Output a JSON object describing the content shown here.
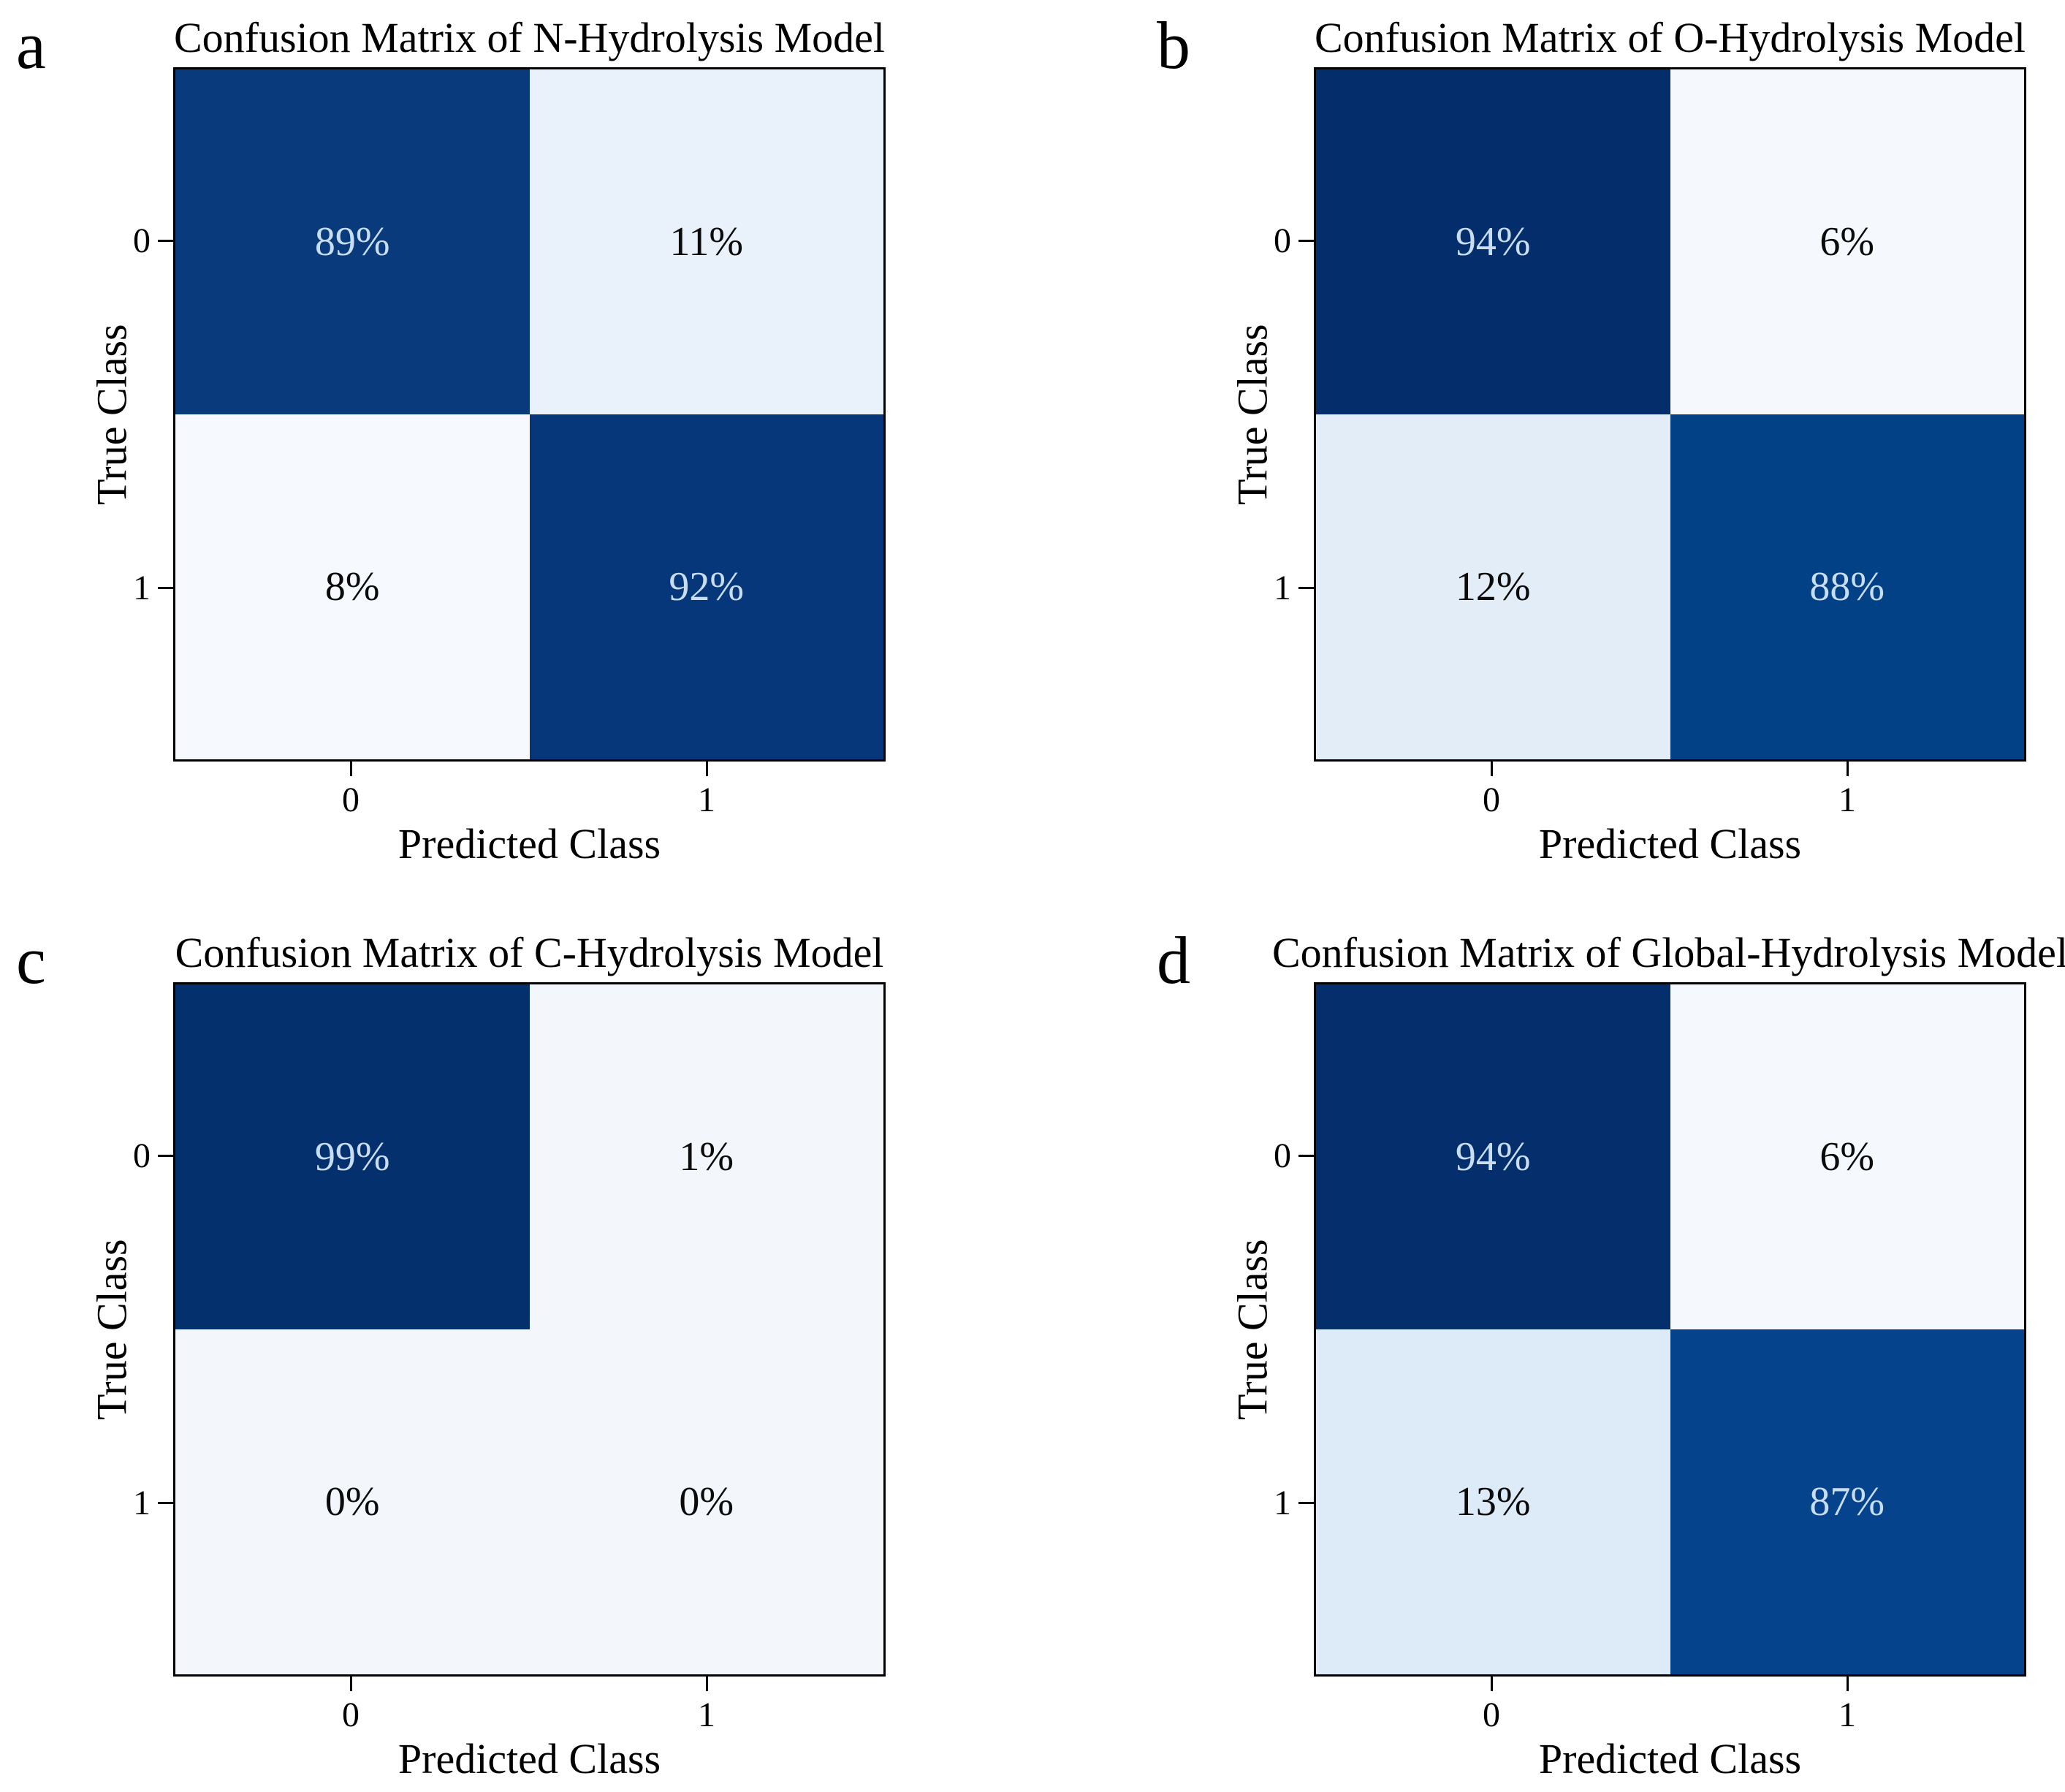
{
  "figure": {
    "background_color": "#ffffff",
    "axis_color": "#000000",
    "dark_cell_text_color": "#c9ddf0",
    "light_cell_text_color": "#0b0b0b",
    "colormap": "Blues"
  },
  "panels": [
    {
      "letter": "a",
      "title": "Confusion Matrix of N-Hydrolysis Model",
      "xlabel": "Predicted Class",
      "ylabel": "True Class",
      "xticks": [
        "0",
        "1"
      ],
      "yticks": [
        "0",
        "1"
      ],
      "cells": [
        [
          {
            "label": "89%",
            "bg": "#083a7c",
            "fg": "#c9ddf0"
          },
          {
            "label": "11%",
            "bg": "#e9f1fb",
            "fg": "#0b0b0b"
          }
        ],
        [
          {
            "label": "8%",
            "bg": "#f6f9fd",
            "fg": "#0b0b0b"
          },
          {
            "label": "92%",
            "bg": "#05377a",
            "fg": "#c9ddf0"
          }
        ]
      ]
    },
    {
      "letter": "b",
      "title": "Confusion Matrix of O-Hydrolysis Model",
      "xlabel": "Predicted Class",
      "ylabel": "True Class",
      "xticks": [
        "0",
        "1"
      ],
      "yticks": [
        "0",
        "1"
      ],
      "cells": [
        [
          {
            "label": "94%",
            "bg": "#042e6b",
            "fg": "#c9ddf0"
          },
          {
            "label": "6%",
            "bg": "#f5f8fd",
            "fg": "#0b0b0b"
          }
        ],
        [
          {
            "label": "12%",
            "bg": "#e2edf8",
            "fg": "#0b0b0b"
          },
          {
            "label": "88%",
            "bg": "#034186",
            "fg": "#c9ddf0"
          }
        ]
      ]
    },
    {
      "letter": "c",
      "title": "Confusion Matrix of C-Hydrolysis Model",
      "xlabel": "Predicted Class",
      "ylabel": "True Class",
      "xticks": [
        "0",
        "1"
      ],
      "yticks": [
        "0",
        "1"
      ],
      "cells": [
        [
          {
            "label": "99%",
            "bg": "#04306e",
            "fg": "#c9ddf0"
          },
          {
            "label": "1%",
            "bg": "#f3f7fc",
            "fg": "#0b0b0b"
          }
        ],
        [
          {
            "label": "0%",
            "bg": "#f3f7fc",
            "fg": "#0b0b0b"
          },
          {
            "label": "0%",
            "bg": "#f3f7fc",
            "fg": "#0b0b0b"
          }
        ]
      ]
    },
    {
      "letter": "d",
      "title": "Confusion Matrix of Global-Hydrolysis Model",
      "xlabel": "Predicted Class",
      "ylabel": "True Class",
      "xticks": [
        "0",
        "1"
      ],
      "yticks": [
        "0",
        "1"
      ],
      "cells": [
        [
          {
            "label": "94%",
            "bg": "#052f6c",
            "fg": "#c9ddf0"
          },
          {
            "label": "6%",
            "bg": "#f5f8fd",
            "fg": "#0b0b0b"
          }
        ],
        [
          {
            "label": "13%",
            "bg": "#ddeaf7",
            "fg": "#0b0b0b"
          },
          {
            "label": "87%",
            "bg": "#05438c",
            "fg": "#c9ddf0"
          }
        ]
      ]
    }
  ],
  "chart_data": [
    {
      "type": "heatmap",
      "title": "Confusion Matrix of N-Hydrolysis Model",
      "xlabel": "Predicted Class",
      "ylabel": "True Class",
      "x_categories": [
        "0",
        "1"
      ],
      "y_categories": [
        "0",
        "1"
      ],
      "values_percent": [
        [
          89,
          11
        ],
        [
          8,
          92
        ]
      ],
      "cell_labels": [
        [
          "89%",
          "11%"
        ],
        [
          "8%",
          "92%"
        ]
      ],
      "colormap": "Blues",
      "legend": "none",
      "grid": false
    },
    {
      "type": "heatmap",
      "title": "Confusion Matrix of O-Hydrolysis Model",
      "xlabel": "Predicted Class",
      "ylabel": "True Class",
      "x_categories": [
        "0",
        "1"
      ],
      "y_categories": [
        "0",
        "1"
      ],
      "values_percent": [
        [
          94,
          6
        ],
        [
          12,
          88
        ]
      ],
      "cell_labels": [
        [
          "94%",
          "6%"
        ],
        [
          "12%",
          "88%"
        ]
      ],
      "colormap": "Blues",
      "legend": "none",
      "grid": false
    },
    {
      "type": "heatmap",
      "title": "Confusion Matrix of C-Hydrolysis Model",
      "xlabel": "Predicted Class",
      "ylabel": "True Class",
      "x_categories": [
        "0",
        "1"
      ],
      "y_categories": [
        "0",
        "1"
      ],
      "values_percent": [
        [
          99,
          1
        ],
        [
          0,
          0
        ]
      ],
      "cell_labels": [
        [
          "99%",
          "1%"
        ],
        [
          "0%",
          "0%"
        ]
      ],
      "colormap": "Blues",
      "legend": "none",
      "grid": false
    },
    {
      "type": "heatmap",
      "title": "Confusion Matrix of Global-Hydrolysis Model",
      "xlabel": "Predicted Class",
      "ylabel": "True Class",
      "x_categories": [
        "0",
        "1"
      ],
      "y_categories": [
        "0",
        "1"
      ],
      "values_percent": [
        [
          94,
          6
        ],
        [
          13,
          87
        ]
      ],
      "cell_labels": [
        [
          "94%",
          "6%"
        ],
        [
          "13%",
          "87%"
        ]
      ],
      "colormap": "Blues",
      "legend": "none",
      "grid": false
    }
  ]
}
